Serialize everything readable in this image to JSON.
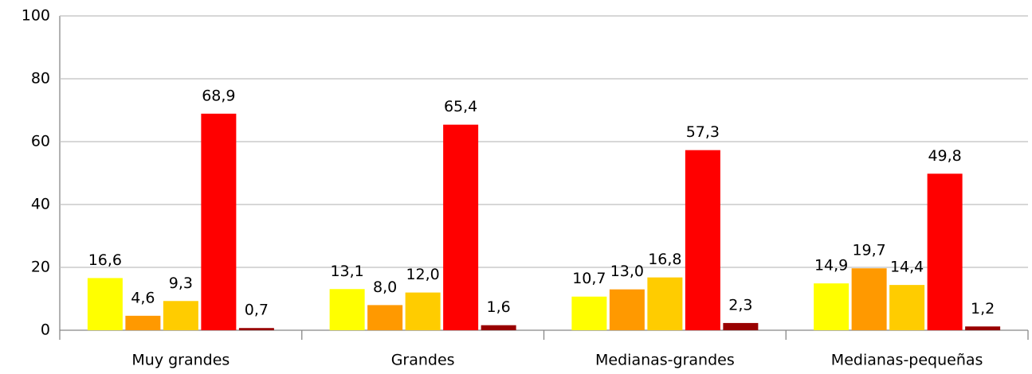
{
  "chart_data": {
    "type": "bar",
    "categories": [
      "Muy grandes",
      "Grandes",
      "Medianas-grandes",
      "Medianas-pequeñas"
    ],
    "series": [
      {
        "color": "#ffff00",
        "values": [
          16.6,
          13.1,
          10.7,
          14.9
        ],
        "value_labels": [
          "16,6",
          "13,1",
          "10,7",
          "14,9"
        ]
      },
      {
        "color": "#ff9900",
        "values": [
          4.6,
          8.0,
          13.0,
          19.7
        ],
        "value_labels": [
          "4,6",
          "8,0",
          "13,0",
          "19,7"
        ]
      },
      {
        "color": "#ffcc00",
        "values": [
          9.3,
          12.0,
          16.8,
          14.4
        ],
        "value_labels": [
          "9,3",
          "12,0",
          "16,8",
          "14,4"
        ]
      },
      {
        "color": "#ff0000",
        "values": [
          68.9,
          65.4,
          57.3,
          49.8
        ],
        "value_labels": [
          "68,9",
          "65,4",
          "57,3",
          "49,8"
        ]
      },
      {
        "color": "#990000",
        "values": [
          0.7,
          1.6,
          2.3,
          1.2
        ],
        "value_labels": [
          "0,7",
          "1,6",
          "2,3",
          "1,2"
        ]
      }
    ],
    "ylim": [
      0,
      100
    ],
    "yticks": [
      0,
      20,
      40,
      60,
      80,
      100
    ],
    "grid": true
  }
}
